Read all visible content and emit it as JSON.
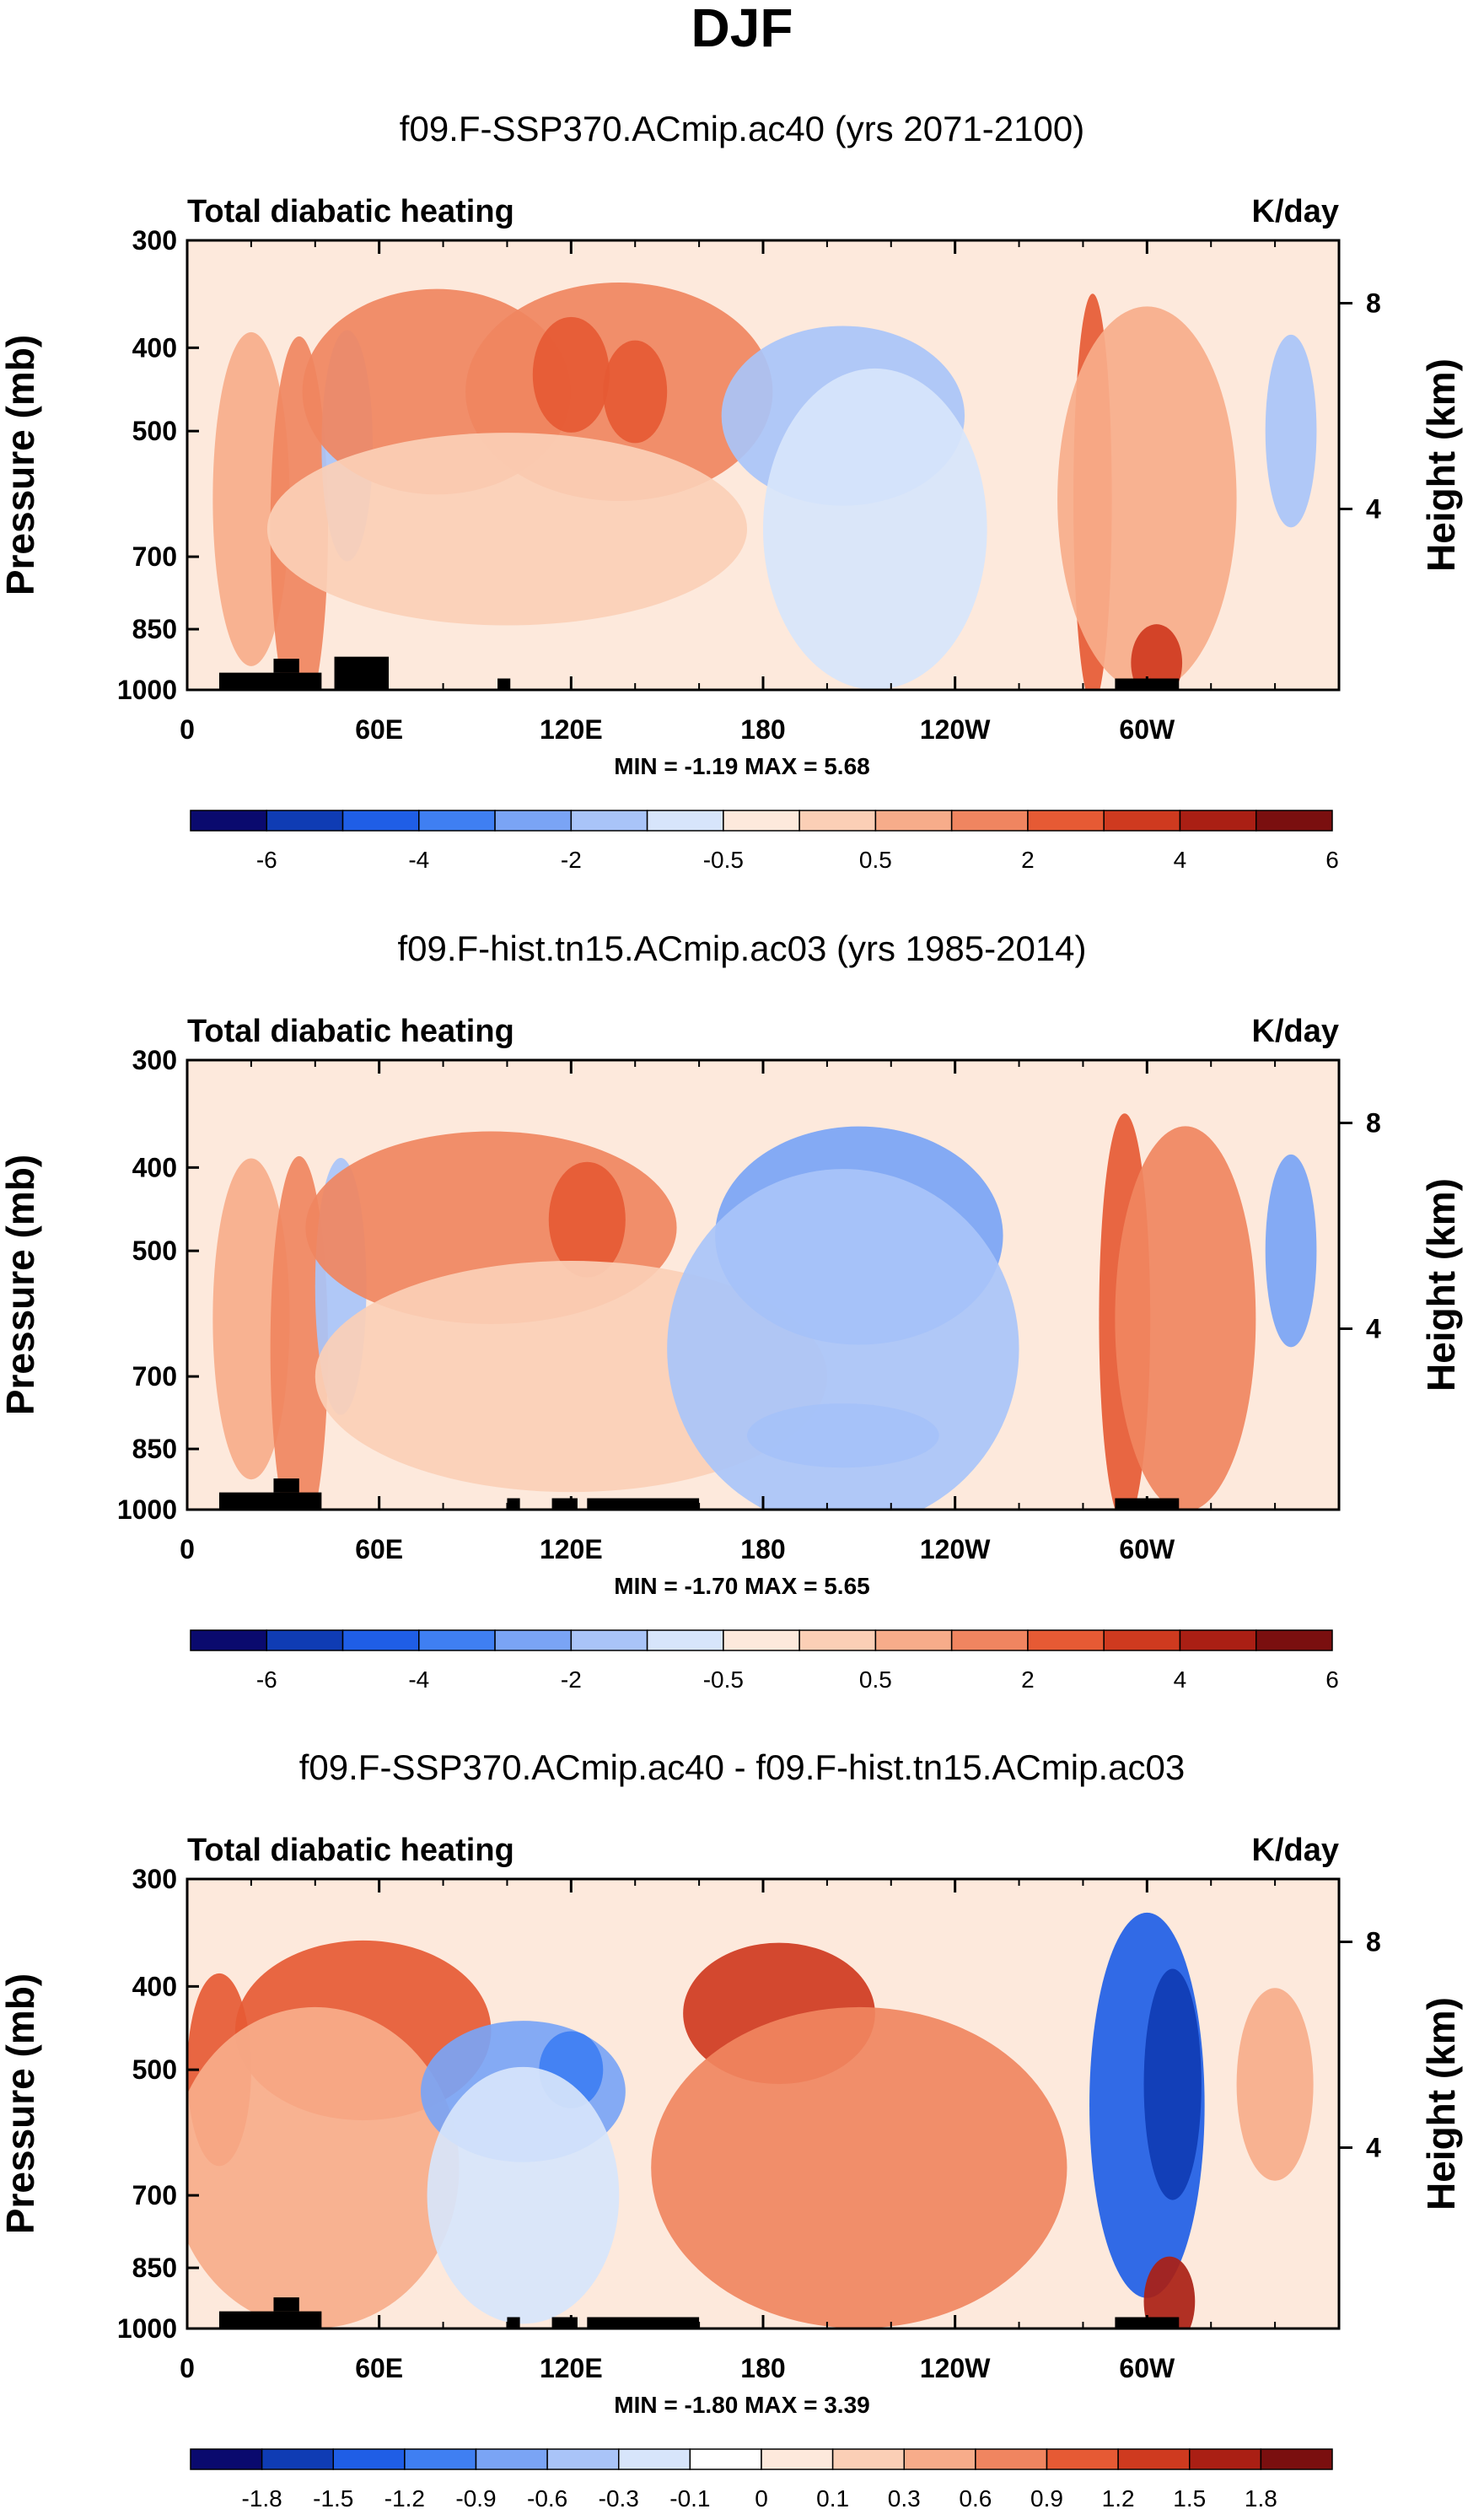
{
  "figure_title": "DJF",
  "chart_data": [
    {
      "type": "heatmap",
      "title": "f09.F-SSP370.ACmip.ac40 (yrs 2071-2100)",
      "left_label": "Total diabatic heating",
      "right_label": "K/day",
      "ylabel": "Pressure (mb)",
      "y2label": "Height (km)",
      "x_ticks": [
        "0",
        "60E",
        "120E",
        "180",
        "120W",
        "60W"
      ],
      "y_ticks": [
        "300",
        "400",
        "500",
        "700",
        "850",
        "1000"
      ],
      "y2_ticks": [
        "8",
        "4"
      ],
      "stats": "MIN =  -1.19  MAX =   5.68",
      "colorbar_labels": [
        "-6",
        "-4",
        "-2",
        "-0.5",
        "0.5",
        "2",
        "4",
        "6"
      ],
      "colorbar_colors": [
        "#0a0a6e",
        "#0f3cb4",
        "#1f5ee6",
        "#3f7ff2",
        "#7aa4f5",
        "#a9c4f8",
        "#d7e5fb",
        "#fde9dc",
        "#fbcfb6",
        "#f7ac8a",
        "#f08560",
        "#e65a34",
        "#cf3a1f",
        "#aa1f14",
        "#7a0f0f"
      ],
      "land_mask": [
        [
          10,
          1000,
          42,
          955
        ],
        [
          27,
          955,
          35,
          920
        ],
        [
          46,
          1000,
          63,
          915
        ],
        [
          97,
          1000,
          101,
          970
        ],
        [
          290,
          1000,
          310,
          970
        ]
      ],
      "features": [
        {
          "lon": 20,
          "p": 600,
          "rx": 12,
          "ry": 260,
          "color": "#f7ac8a"
        },
        {
          "lon": 35,
          "p": 650,
          "rx": 9,
          "ry": 300,
          "color": "#f08560"
        },
        {
          "lon": 50,
          "p": 520,
          "rx": 8,
          "ry": 180,
          "color": "#a9c4f8"
        },
        {
          "lon": 78,
          "p": 450,
          "rx": 42,
          "ry": 160,
          "color": "#f08560"
        },
        {
          "lon": 135,
          "p": 450,
          "rx": 48,
          "ry": 170,
          "color": "#f08560"
        },
        {
          "lon": 120,
          "p": 430,
          "rx": 12,
          "ry": 90,
          "color": "#e65a34"
        },
        {
          "lon": 140,
          "p": 450,
          "rx": 10,
          "ry": 80,
          "color": "#e65a34"
        },
        {
          "lon": 100,
          "p": 650,
          "rx": 75,
          "ry": 150,
          "color": "#fbcfb6"
        },
        {
          "lon": 205,
          "p": 480,
          "rx": 38,
          "ry": 140,
          "color": "#a9c4f8"
        },
        {
          "lon": 215,
          "p": 650,
          "rx": 35,
          "ry": 250,
          "color": "#d7e5fb"
        },
        {
          "lon": 283,
          "p": 600,
          "rx": 6,
          "ry": 320,
          "color": "#e65a34"
        },
        {
          "lon": 300,
          "p": 600,
          "rx": 28,
          "ry": 300,
          "color": "#f7ac8a"
        },
        {
          "lon": 303,
          "p": 930,
          "rx": 8,
          "ry": 60,
          "color": "#cf3a1f"
        },
        {
          "lon": 345,
          "p": 500,
          "rx": 8,
          "ry": 150,
          "color": "#a9c4f8"
        }
      ]
    },
    {
      "type": "heatmap",
      "title": "f09.F-hist.tn15.ACmip.ac03 (yrs 1985-2014)",
      "left_label": "Total diabatic heating",
      "right_label": "K/day",
      "ylabel": "Pressure (mb)",
      "y2label": "Height (km)",
      "x_ticks": [
        "0",
        "60E",
        "120E",
        "180",
        "120W",
        "60W"
      ],
      "y_ticks": [
        "300",
        "400",
        "500",
        "700",
        "850",
        "1000"
      ],
      "y2_ticks": [
        "8",
        "4"
      ],
      "stats": "MIN =  -1.70  MAX =   5.65",
      "colorbar_labels": [
        "-6",
        "-4",
        "-2",
        "-0.5",
        "0.5",
        "2",
        "4",
        "6"
      ],
      "colorbar_colors": [
        "#0a0a6e",
        "#0f3cb4",
        "#1f5ee6",
        "#3f7ff2",
        "#7aa4f5",
        "#a9c4f8",
        "#d7e5fb",
        "#fde9dc",
        "#fbcfb6",
        "#f7ac8a",
        "#f08560",
        "#e65a34",
        "#cf3a1f",
        "#aa1f14",
        "#7a0f0f"
      ],
      "land_mask": [
        [
          10,
          1000,
          42,
          955
        ],
        [
          27,
          955,
          35,
          920
        ],
        [
          100,
          1000,
          104,
          970
        ],
        [
          114,
          1000,
          122,
          970
        ],
        [
          125,
          1000,
          160,
          970
        ],
        [
          290,
          1000,
          310,
          970
        ]
      ],
      "features": [
        {
          "lon": 20,
          "p": 600,
          "rx": 12,
          "ry": 250,
          "color": "#f7ac8a"
        },
        {
          "lon": 35,
          "p": 650,
          "rx": 9,
          "ry": 300,
          "color": "#f08560"
        },
        {
          "lon": 48,
          "p": 550,
          "rx": 8,
          "ry": 200,
          "color": "#a9c4f8"
        },
        {
          "lon": 95,
          "p": 470,
          "rx": 58,
          "ry": 150,
          "color": "#f08560"
        },
        {
          "lon": 125,
          "p": 460,
          "rx": 12,
          "ry": 90,
          "color": "#e65a34"
        },
        {
          "lon": 120,
          "p": 700,
          "rx": 80,
          "ry": 180,
          "color": "#fbcfb6"
        },
        {
          "lon": 210,
          "p": 480,
          "rx": 45,
          "ry": 170,
          "color": "#7aa4f5"
        },
        {
          "lon": 205,
          "p": 820,
          "rx": 30,
          "ry": 50,
          "color": "#7aa4f5"
        },
        {
          "lon": 205,
          "p": 650,
          "rx": 55,
          "ry": 280,
          "color": "#a9c4f8"
        },
        {
          "lon": 293,
          "p": 600,
          "rx": 8,
          "ry": 320,
          "color": "#e65a34"
        },
        {
          "lon": 312,
          "p": 600,
          "rx": 22,
          "ry": 300,
          "color": "#f08560"
        },
        {
          "lon": 345,
          "p": 500,
          "rx": 8,
          "ry": 150,
          "color": "#7aa4f5"
        }
      ]
    },
    {
      "type": "heatmap",
      "title": "f09.F-SSP370.ACmip.ac40 - f09.F-hist.tn15.ACmip.ac03",
      "left_label": "Total diabatic heating",
      "right_label": "K/day",
      "ylabel": "Pressure (mb)",
      "y2label": "Height (km)",
      "x_ticks": [
        "0",
        "60E",
        "120E",
        "180",
        "120W",
        "60W"
      ],
      "y_ticks": [
        "300",
        "400",
        "500",
        "700",
        "850",
        "1000"
      ],
      "y2_ticks": [
        "8",
        "4"
      ],
      "stats": "MIN =  -1.80  MAX =   3.39",
      "colorbar_labels": [
        "-1.8",
        "-1.5",
        "-1.2",
        "-0.9",
        "-0.6",
        "-0.3",
        "-0.1",
        "0",
        "0.1",
        "0.3",
        "0.6",
        "0.9",
        "1.2",
        "1.5",
        "1.8"
      ],
      "colorbar_colors": [
        "#0a0a6e",
        "#0f3cb4",
        "#1f5ee6",
        "#3f7ff2",
        "#7aa4f5",
        "#a9c4f8",
        "#d7e5fb",
        "#ffffff",
        "#fde9dc",
        "#fbcfb6",
        "#f7ac8a",
        "#f08560",
        "#e65a34",
        "#cf3a1f",
        "#aa1f14",
        "#7a0f0f"
      ],
      "land_mask": [
        [
          10,
          1000,
          42,
          955
        ],
        [
          27,
          955,
          35,
          920
        ],
        [
          100,
          1000,
          104,
          970
        ],
        [
          114,
          1000,
          122,
          970
        ],
        [
          125,
          1000,
          160,
          970
        ],
        [
          290,
          1000,
          310,
          970
        ]
      ],
      "features": [
        {
          "lon": 10,
          "p": 500,
          "rx": 10,
          "ry": 150,
          "color": "#e65a34"
        },
        {
          "lon": 55,
          "p": 450,
          "rx": 40,
          "ry": 140,
          "color": "#e65a34"
        },
        {
          "lon": 40,
          "p": 650,
          "rx": 45,
          "ry": 250,
          "color": "#f7ac8a"
        },
        {
          "lon": 105,
          "p": 530,
          "rx": 32,
          "ry": 110,
          "color": "#7aa4f5"
        },
        {
          "lon": 120,
          "p": 500,
          "rx": 10,
          "ry": 60,
          "color": "#3f7ff2"
        },
        {
          "lon": 105,
          "p": 700,
          "rx": 30,
          "ry": 200,
          "color": "#d7e5fb"
        },
        {
          "lon": 185,
          "p": 430,
          "rx": 30,
          "ry": 110,
          "color": "#cf3a1f"
        },
        {
          "lon": 210,
          "p": 650,
          "rx": 65,
          "ry": 250,
          "color": "#f08560"
        },
        {
          "lon": 300,
          "p": 550,
          "rx": 18,
          "ry": 300,
          "color": "#1f5ee6"
        },
        {
          "lon": 308,
          "p": 520,
          "rx": 9,
          "ry": 180,
          "color": "#0f3cb4"
        },
        {
          "lon": 307,
          "p": 930,
          "rx": 8,
          "ry": 70,
          "color": "#aa1f14"
        },
        {
          "lon": 340,
          "p": 520,
          "rx": 12,
          "ry": 150,
          "color": "#f7ac8a"
        }
      ]
    }
  ]
}
